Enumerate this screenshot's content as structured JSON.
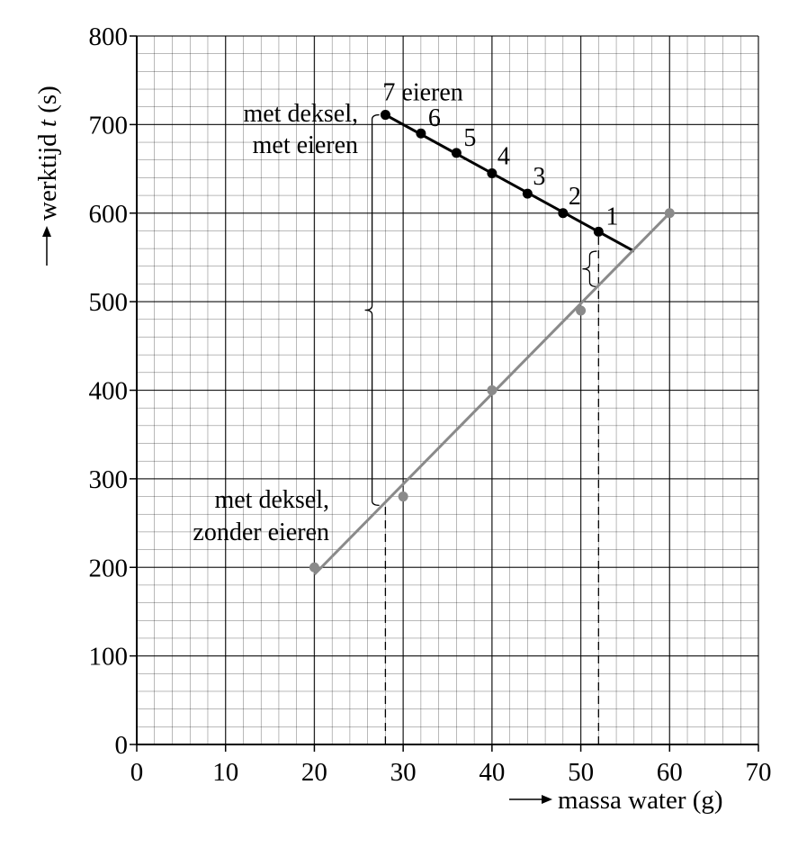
{
  "chart_data": {
    "type": "scatter",
    "xlabel": "massa water (g)",
    "ylabel_prefix": "werktijd ",
    "ylabel_symbol": "t",
    "ylabel_unit": " (s)",
    "xlim": [
      0,
      70
    ],
    "ylim": [
      0,
      800
    ],
    "x_ticks": [
      0,
      10,
      20,
      30,
      40,
      50,
      60,
      70
    ],
    "y_ticks": [
      0,
      100,
      200,
      300,
      400,
      500,
      600,
      700,
      800
    ],
    "grid": true,
    "colors": {
      "with_eggs": "#000000",
      "without_eggs": "#8a8a8a",
      "grid": "#000000"
    },
    "series": [
      {
        "label_lines": [
          "met deksel,",
          "met eieren"
        ],
        "points": [
          {
            "x": 28,
            "y": 711,
            "label": "7 eieren"
          },
          {
            "x": 32,
            "y": 690,
            "label": "6"
          },
          {
            "x": 36,
            "y": 668,
            "label": "5"
          },
          {
            "x": 40,
            "y": 645,
            "label": "4"
          },
          {
            "x": 44,
            "y": 622,
            "label": "3"
          },
          {
            "x": 48,
            "y": 600,
            "label": "2"
          },
          {
            "x": 52,
            "y": 579,
            "label": "1"
          }
        ],
        "fit_line": [
          [
            28,
            711
          ],
          [
            56,
            557
          ]
        ]
      },
      {
        "label_lines": [
          "met deksel,",
          "zonder eieren"
        ],
        "points": [
          {
            "x": 20,
            "y": 200
          },
          {
            "x": 30,
            "y": 280
          },
          {
            "x": 40,
            "y": 400
          },
          {
            "x": 50,
            "y": 490
          },
          {
            "x": 60,
            "y": 600
          }
        ],
        "fit_line": [
          [
            20,
            192
          ],
          [
            60,
            600
          ]
        ]
      }
    ],
    "reference_lines": [
      {
        "x": 28,
        "y_from": 0,
        "y_to": 270
      },
      {
        "x": 52,
        "y_from": 0,
        "y_to": 579
      }
    ],
    "braces": [
      {
        "x": 26.5,
        "y_from": 270,
        "y_to": 711
      },
      {
        "x": 51,
        "y_from": 517,
        "y_to": 557
      }
    ]
  }
}
